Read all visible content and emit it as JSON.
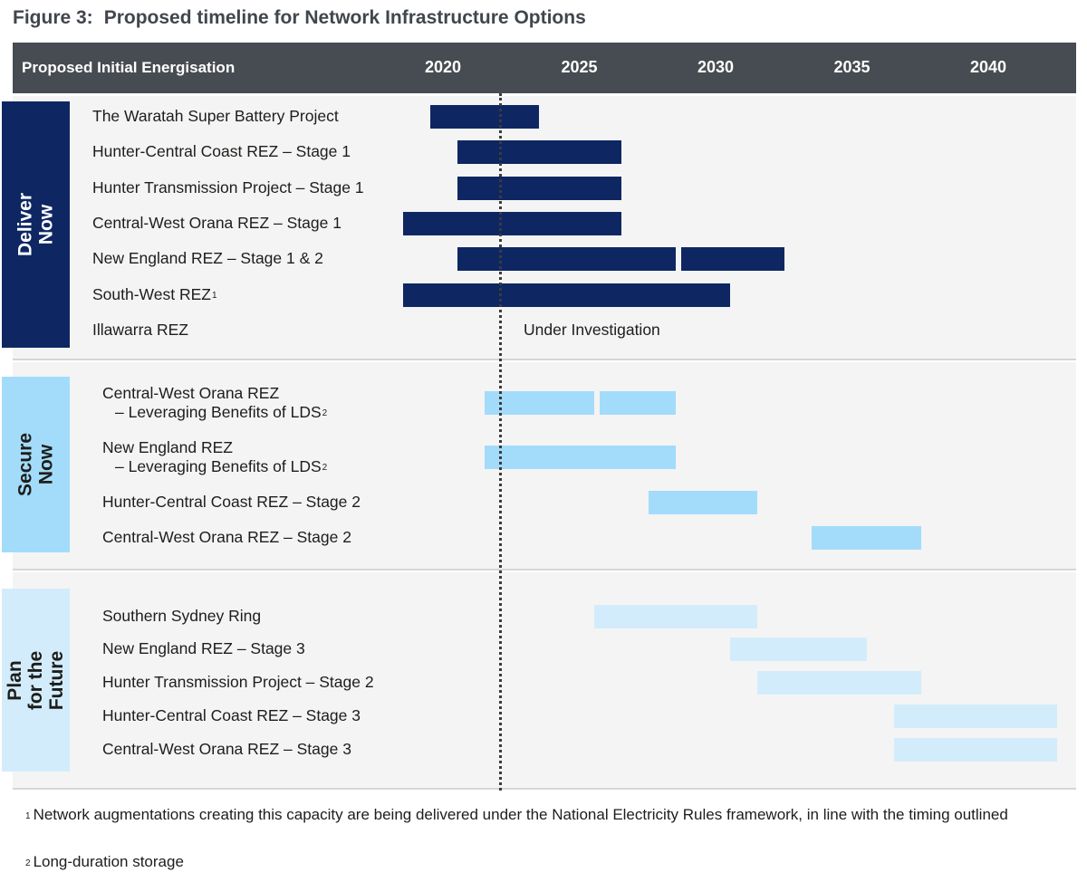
{
  "figure": {
    "number": "Figure 3:",
    "title": "Proposed timeline for Network Infrastructure Options"
  },
  "colors": {
    "header_bg": "#474c52",
    "deliver_now": "#0e2763",
    "secure_now": "#a3dcfa",
    "plan_future": "#d3ecfb",
    "section_bg": "#f4f4f4"
  },
  "chart_data": {
    "type": "gantt",
    "header_label": "Proposed Initial Energisation",
    "x_ticks": [
      2020,
      2025,
      2030,
      2035,
      2040
    ],
    "x_range": [
      2015.0,
      2042.5
    ],
    "current_marker_year": 2022.6,
    "groups": [
      {
        "name": "Deliver Now",
        "color": "#0e2763",
        "text_color": "#ffffff",
        "rows": [
          {
            "label": "The Waratah Super Battery Project",
            "sup": "",
            "sub": "",
            "bars": [
              [
                2020.0,
                2024.0
              ]
            ]
          },
          {
            "label": "Hunter-Central Coast REZ – Stage 1",
            "sup": "",
            "sub": "",
            "bars": [
              [
                2021.0,
                2027.0
              ]
            ]
          },
          {
            "label": "Hunter Transmission Project – Stage 1",
            "sup": "",
            "sub": "",
            "bars": [
              [
                2021.0,
                2027.0
              ]
            ]
          },
          {
            "label": "Central-West Orana REZ – Stage 1",
            "sup": "",
            "sub": "",
            "bars": [
              [
                2019.0,
                2027.0
              ]
            ]
          },
          {
            "label": "New England REZ – Stage 1 & 2",
            "sup": "",
            "sub": "",
            "bars": [
              [
                2021.0,
                2029.0
              ],
              [
                2029.2,
                2033.0
              ]
            ]
          },
          {
            "label": "South-West REZ",
            "sup": "1",
            "sub": "",
            "bars": [
              [
                2019.0,
                2031.0
              ]
            ]
          },
          {
            "label": "Illawarra REZ",
            "sup": "",
            "sub": "",
            "bars": [],
            "note": "Under Investigation"
          }
        ]
      },
      {
        "name": "Secure Now",
        "color": "#a3dcfa",
        "text_color": "#1d1d1b",
        "rows": [
          {
            "label": "Central-West Orana REZ",
            "sup": "",
            "sub": "– Leveraging Benefits of LDS",
            "sub_sup": "2",
            "bars": [
              [
                2022.0,
                2026.0
              ],
              [
                2026.2,
                2029.0
              ]
            ]
          },
          {
            "label": "New England REZ",
            "sup": "",
            "sub": "– Leveraging Benefits of LDS",
            "sub_sup": "2",
            "bars": [
              [
                2022.0,
                2029.0
              ]
            ]
          },
          {
            "label": "Hunter-Central Coast REZ – Stage 2",
            "sup": "",
            "sub": "",
            "bars": [
              [
                2028.0,
                2032.0
              ]
            ]
          },
          {
            "label": "Central-West Orana REZ – Stage 2",
            "sup": "",
            "sub": "",
            "bars": [
              [
                2034.0,
                2038.0
              ]
            ]
          }
        ]
      },
      {
        "name": "Plan for the Future",
        "color": "#d3ecfb",
        "text_color": "#1d1d1b",
        "rows": [
          {
            "label": "Southern Sydney Ring",
            "sup": "",
            "sub": "",
            "bars": [
              [
                2026.0,
                2032.0
              ]
            ]
          },
          {
            "label": "New England REZ – Stage 3",
            "sup": "",
            "sub": "",
            "bars": [
              [
                2031.0,
                2036.0
              ]
            ]
          },
          {
            "label": "Hunter Transmission Project – Stage 2",
            "sup": "",
            "sub": "",
            "bars": [
              [
                2032.0,
                2038.0
              ]
            ]
          },
          {
            "label": "Hunter-Central Coast REZ – Stage 3",
            "sup": "",
            "sub": "",
            "bars": [
              [
                2037.0,
                2043.0
              ]
            ]
          },
          {
            "label": "Central-West Orana REZ – Stage 3",
            "sup": "",
            "sub": "",
            "bars": [
              [
                2037.0,
                2043.0
              ]
            ]
          }
        ]
      }
    ]
  },
  "footnotes": [
    {
      "mark": "1",
      "text": "Network augmentations creating this capacity are being delivered under the National Electricity Rules framework, in line with the timing outlined"
    },
    {
      "mark": "2",
      "text": "Long-duration storage"
    }
  ]
}
